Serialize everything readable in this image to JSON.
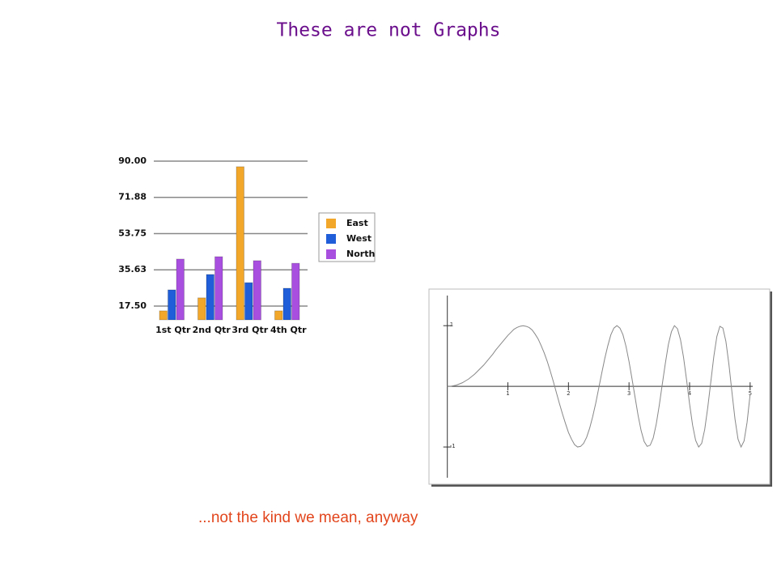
{
  "title": "These are not Graphs",
  "caption": "...not the kind we mean, anyway",
  "chart_data": [
    {
      "type": "bar",
      "categories": [
        "1st Qtr",
        "2nd Qtr",
        "3rd Qtr",
        "4th Qtr"
      ],
      "series": [
        {
          "name": "East",
          "color": "#f2a72a",
          "values": [
            15.1,
            21.6,
            87.2,
            15.1
          ]
        },
        {
          "name": "West",
          "color": "#1f5ed8",
          "values": [
            25.6,
            33.3,
            29.2,
            26.4
          ]
        },
        {
          "name": "North",
          "color": "#a94fe0",
          "values": [
            41.0,
            42.2,
            40.2,
            38.9
          ]
        }
      ],
      "ylim": [
        10.6,
        90
      ],
      "yticks": [
        {
          "value": 17.5,
          "label": "17.50"
        },
        35.63,
        53.75,
        71.88,
        {
          "value": 90,
          "label": "90.00"
        }
      ],
      "grid": true,
      "legend": "right"
    },
    {
      "type": "line",
      "color": "#888888",
      "x": [
        0,
        0.05,
        0.1,
        0.15,
        0.2,
        0.25,
        0.3,
        0.35,
        0.4,
        0.45,
        0.5,
        0.55,
        0.6,
        0.65,
        0.7,
        0.75,
        0.8,
        0.85,
        0.9,
        0.95,
        1,
        1.05,
        1.1,
        1.15,
        1.2,
        1.25,
        1.3,
        1.35,
        1.4,
        1.45,
        1.5,
        1.55,
        1.6,
        1.65,
        1.7,
        1.75,
        1.8,
        1.85,
        1.9,
        1.95,
        2,
        2.05,
        2.1,
        2.15,
        2.2,
        2.25,
        2.3,
        2.35,
        2.4,
        2.45,
        2.5,
        2.55,
        2.6,
        2.65,
        2.7,
        2.75,
        2.8,
        2.85,
        2.9,
        2.95,
        3,
        3.05,
        3.1,
        3.15,
        3.2,
        3.25,
        3.3,
        3.35,
        3.4,
        3.45,
        3.5,
        3.55,
        3.6,
        3.65,
        3.7,
        3.75,
        3.8,
        3.85,
        3.9,
        3.95,
        4,
        4.05,
        4.1,
        4.15,
        4.2,
        4.25,
        4.3,
        4.35,
        4.4,
        4.45,
        4.5,
        4.55,
        4.6,
        4.65,
        4.7,
        4.75,
        4.8,
        4.85,
        4.9,
        4.95,
        5
      ],
      "values": [
        0,
        0,
        0.01,
        0.02,
        0.04,
        0.06,
        0.09,
        0.12,
        0.16,
        0.2,
        0.25,
        0.3,
        0.35,
        0.41,
        0.47,
        0.53,
        0.6,
        0.66,
        0.72,
        0.78,
        0.84,
        0.89,
        0.94,
        0.97,
        0.99,
        1,
        0.99,
        0.97,
        0.93,
        0.86,
        0.78,
        0.67,
        0.55,
        0.41,
        0.25,
        0.08,
        -0.1,
        -0.28,
        -0.45,
        -0.61,
        -0.76,
        -0.87,
        -0.96,
        -1,
        -0.99,
        -0.94,
        -0.84,
        -0.69,
        -0.5,
        -0.28,
        -0.03,
        0.22,
        0.46,
        0.67,
        0.85,
        0.96,
        1,
        0.96,
        0.85,
        0.66,
        0.41,
        0.12,
        -0.18,
        -0.48,
        -0.73,
        -0.91,
        -0.99,
        -0.97,
        -0.85,
        -0.62,
        -0.31,
        0.04,
        0.38,
        0.69,
        0.9,
        1,
        0.95,
        0.77,
        0.48,
        0.11,
        -0.29,
        -0.64,
        -0.89,
        -1,
        -0.94,
        -0.71,
        -0.35,
        0.07,
        0.49,
        0.82,
        0.99,
        0.96,
        0.74,
        0.36,
        -0.1,
        -0.54,
        -0.87,
        -1,
        -0.9,
        -0.59,
        -0.13
      ],
      "xlim": [
        -0.29,
        5.35
      ],
      "ylim": [
        -1.64,
        1.59
      ],
      "xticks": [
        1,
        2,
        3,
        4,
        5
      ],
      "yticks": [
        -1,
        1
      ]
    }
  ]
}
